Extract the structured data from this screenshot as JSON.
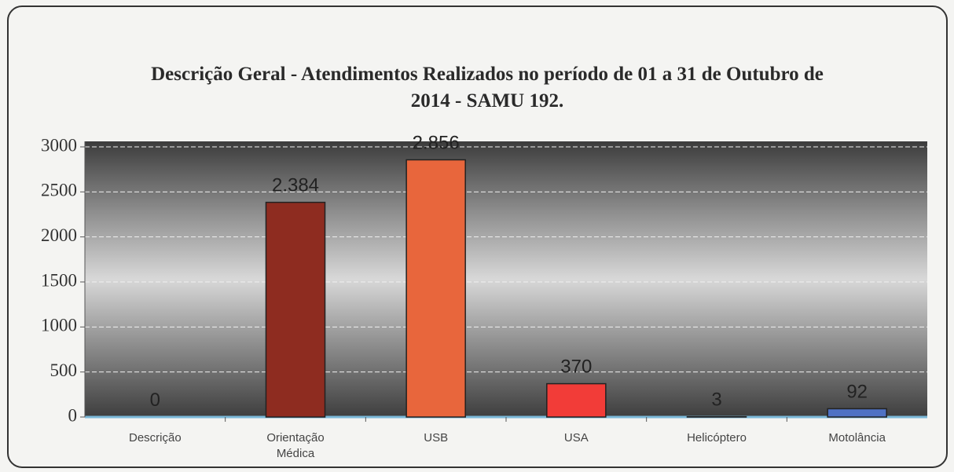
{
  "chart_data": {
    "type": "bar",
    "title": "Descrição Geral - Atendimentos Realizados no período de 01 a 31 de Outubro de 2014 - SAMU 192.",
    "categories": [
      "Descrição",
      "Orientação Médica",
      "USB",
      "USA",
      "Helicóptero",
      "Motolância"
    ],
    "values": [
      0,
      2384,
      2856,
      370,
      3,
      92
    ],
    "value_labels": [
      "0",
      "2.384",
      "2.856",
      "370",
      "3",
      "92"
    ],
    "colors": [
      "#3a6e8a",
      "#8e2c20",
      "#e8663c",
      "#f23c38",
      "#3a3a3a",
      "#4f72c4"
    ],
    "ylim": [
      0,
      3000
    ],
    "yticks": [
      0,
      500,
      1000,
      1500,
      2000,
      2500,
      3000
    ],
    "grid": true
  }
}
